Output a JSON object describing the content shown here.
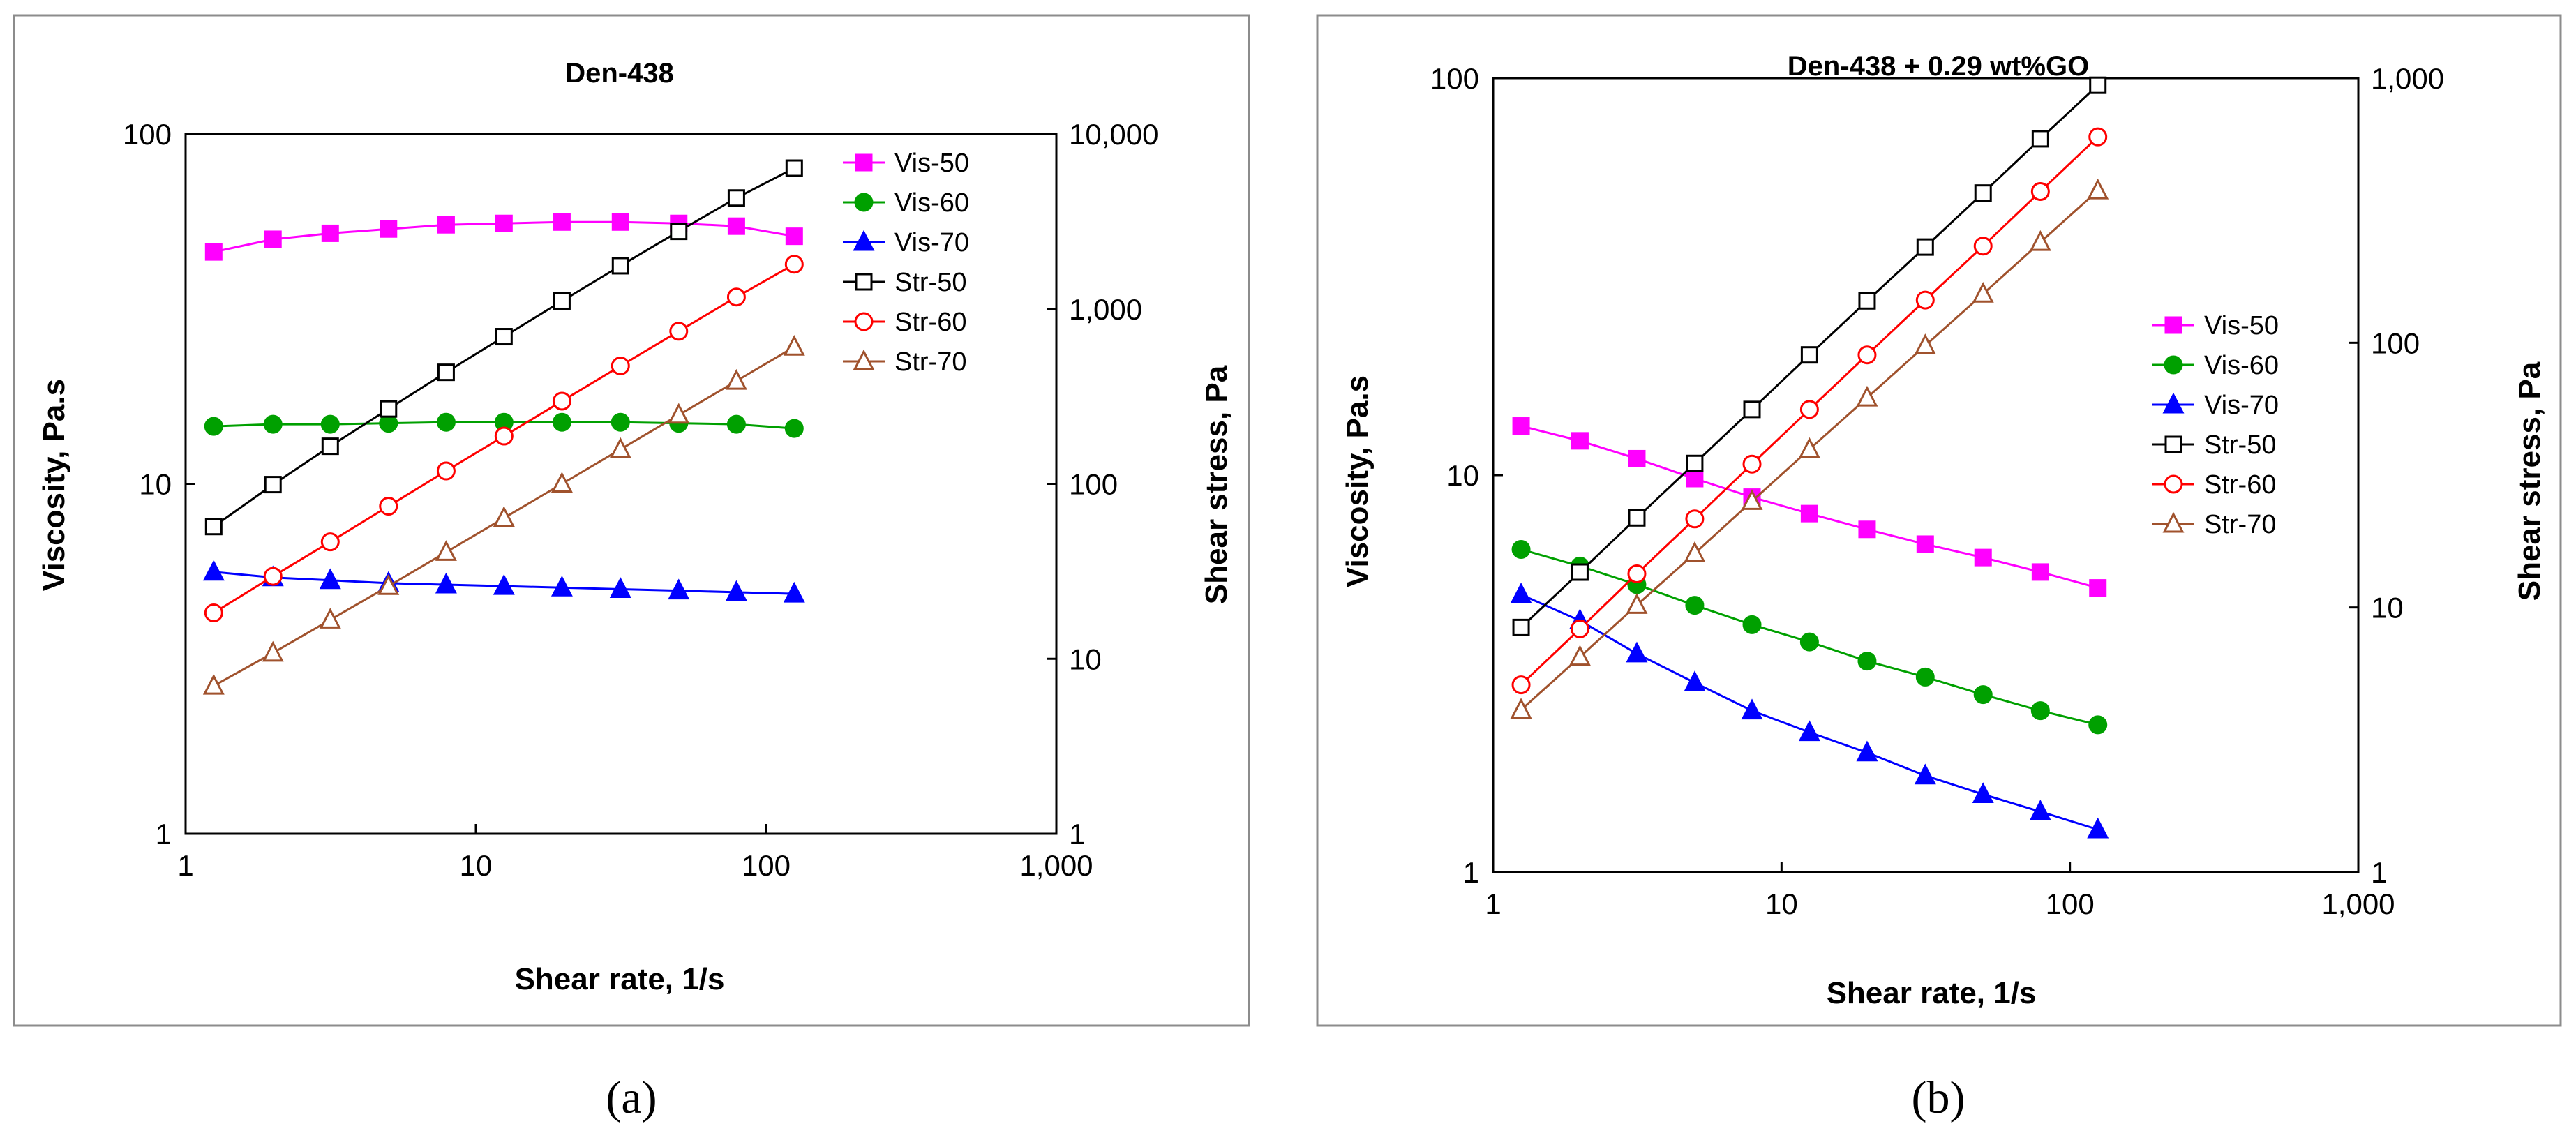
{
  "panels": [
    {
      "sublabel": "(a)",
      "chart_data": {
        "type": "scatter",
        "title": "Den-438",
        "xlabel": "Shear rate, 1/s",
        "ylabel": "Viscosity, Pa.s",
        "y2label": "Shear stress, Pa",
        "xscale": "log",
        "yscale": "log",
        "y2scale": "log",
        "xlim": [
          1,
          1000
        ],
        "ylim": [
          1,
          100
        ],
        "y2lim": [
          1,
          10000
        ],
        "xticks": [
          "1",
          "10",
          "100",
          "1,000"
        ],
        "yticks": [
          "1",
          "10",
          "100"
        ],
        "y2ticks": [
          "1",
          "10",
          "100",
          "1,000",
          "10,000"
        ],
        "x": [
          1.25,
          2,
          3.15,
          5,
          7.9,
          12.5,
          19.8,
          31.5,
          50,
          79,
          125
        ],
        "legend_position": "right",
        "series": [
          {
            "name": "Vis-50",
            "axis": "left",
            "color": "#ff00ff",
            "marker": "square",
            "filled": true,
            "values": [
              46,
              50,
              52,
              53.5,
              55,
              55.5,
              56,
              56,
              55.5,
              54.5,
              51
            ]
          },
          {
            "name": "Vis-60",
            "axis": "left",
            "color": "#00a000",
            "marker": "circle",
            "filled": true,
            "values": [
              14.6,
              14.8,
              14.8,
              14.9,
              15,
              15,
              15,
              15,
              14.9,
              14.8,
              14.4
            ]
          },
          {
            "name": "Vis-70",
            "axis": "left",
            "color": "#0000ff",
            "marker": "triangle",
            "filled": true,
            "values": [
              5.6,
              5.4,
              5.3,
              5.2,
              5.15,
              5.1,
              5.05,
              5.0,
              4.95,
              4.9,
              4.85
            ]
          },
          {
            "name": "Str-50",
            "axis": "right",
            "color": "#000000",
            "marker": "square",
            "filled": false,
            "values": [
              57,
              99,
              164,
              268,
              434,
              694,
              1109,
              1764,
              2775,
              4306,
              6375
            ]
          },
          {
            "name": "Str-60",
            "axis": "right",
            "color": "#ff0000",
            "marker": "circle",
            "filled": false,
            "values": [
              18.3,
              29.6,
              46.6,
              74.5,
              118.5,
              187.5,
              297,
              472,
              745,
              1169,
              1800
            ]
          },
          {
            "name": "Str-70",
            "axis": "right",
            "color": "#a0522d",
            "marker": "triangle",
            "filled": false,
            "values": [
              7,
              10.8,
              16.7,
              26,
              40.7,
              63.8,
              100,
              157.5,
              247.5,
              387,
              606
            ]
          }
        ]
      }
    },
    {
      "sublabel": "(b)",
      "chart_data": {
        "type": "scatter",
        "title": "Den-438 + 0.29 wt%GO",
        "xlabel": "Shear rate, 1/s",
        "ylabel": "Viscosity, Pa.s",
        "y2label": "Shear stress, Pa",
        "xscale": "log",
        "yscale": "log",
        "y2scale": "log",
        "xlim": [
          1,
          1000
        ],
        "ylim": [
          1,
          100
        ],
        "y2lim": [
          1,
          1000
        ],
        "xticks": [
          "1",
          "10",
          "100",
          "1,000"
        ],
        "yticks": [
          "1",
          "10",
          "100"
        ],
        "y2ticks": [
          "1",
          "10",
          "100",
          "1,000"
        ],
        "x": [
          1.25,
          2,
          3.15,
          5,
          7.9,
          12.5,
          19.8,
          31.5,
          50,
          79,
          125
        ],
        "legend_position": "right",
        "series": [
          {
            "name": "Vis-50",
            "axis": "left",
            "color": "#ff00ff",
            "marker": "square",
            "filled": true,
            "values": [
              13.3,
              12.2,
              11.0,
              9.8,
              8.8,
              8.0,
              7.3,
              6.7,
              6.2,
              5.7,
              5.2
            ]
          },
          {
            "name": "Vis-60",
            "axis": "left",
            "color": "#00a000",
            "marker": "circle",
            "filled": true,
            "values": [
              6.5,
              5.9,
              5.3,
              4.7,
              4.2,
              3.8,
              3.4,
              3.1,
              2.8,
              2.55,
              2.35
            ]
          },
          {
            "name": "Vis-70",
            "axis": "left",
            "color": "#0000ff",
            "marker": "triangle",
            "filled": true,
            "values": [
              5.0,
              4.3,
              3.55,
              3.0,
              2.55,
              2.25,
              2.0,
              1.75,
              1.57,
              1.42,
              1.28
            ]
          },
          {
            "name": "Str-50",
            "axis": "right",
            "color": "#000000",
            "marker": "square",
            "filled": false,
            "values": [
              8.4,
              13.6,
              21.8,
              35,
              56,
              90,
              144,
              230,
              368,
              590,
              940
            ]
          },
          {
            "name": "Str-60",
            "axis": "right",
            "color": "#ff0000",
            "marker": "circle",
            "filled": false,
            "values": [
              5.1,
              8.3,
              13.4,
              21.6,
              34.8,
              56,
              90,
              145,
              232,
              373,
              600
            ]
          },
          {
            "name": "Str-70",
            "axis": "right",
            "color": "#a0522d",
            "marker": "triangle",
            "filled": false,
            "values": [
              4.1,
              6.5,
              10.2,
              16.0,
              25.2,
              39.6,
              62,
              97.6,
              153,
              240,
              376
            ]
          }
        ]
      }
    }
  ]
}
